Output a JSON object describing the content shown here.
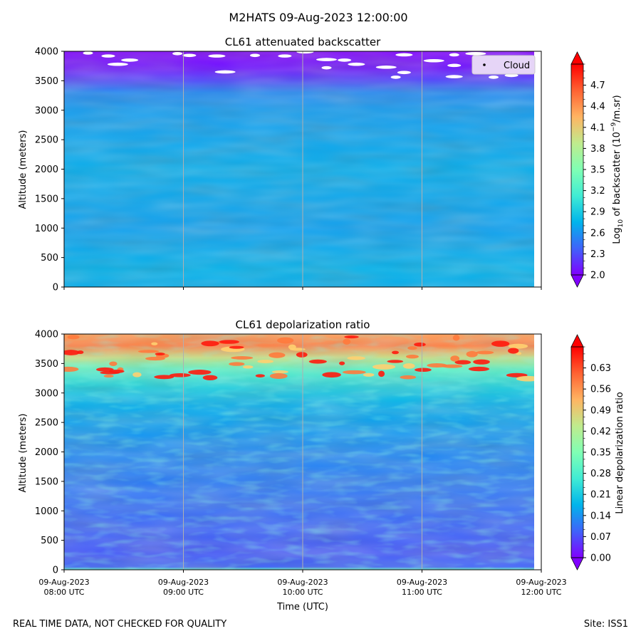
{
  "page": {
    "suptitle": "M2HATS 09-Aug-2023 12:00:00",
    "footer_left": "REAL TIME DATA, NOT CHECKED FOR QUALITY",
    "footer_right": "Site: ISS1"
  },
  "chart_data": [
    {
      "type": "heatmap",
      "title": "CL61 attenuated backscatter",
      "ylabel": "Altitude (meters)",
      "xlabel": "",
      "ylim": [
        0,
        4000
      ],
      "yticks": [
        0,
        500,
        1000,
        1500,
        2000,
        2500,
        3000,
        3500,
        4000
      ],
      "xlim_hours": [
        8,
        12
      ],
      "xticks": [
        {
          "hour": 8,
          "date": "09-Aug-2023",
          "time": "08:00 UTC"
        },
        {
          "hour": 9,
          "date": "09-Aug-2023",
          "time": "09:00 UTC"
        },
        {
          "hour": 10,
          "date": "09-Aug-2023",
          "time": "10:00 UTC"
        },
        {
          "hour": 11,
          "date": "09-Aug-2023",
          "time": "11:00 UTC"
        },
        {
          "hour": 12,
          "date": "09-Aug-2023",
          "time": "12:00 UTC"
        }
      ],
      "show_xtick_labels": false,
      "colorbar": {
        "label_main": "Log",
        "label_sub": "10",
        "label_rest_a": " of backscatter (10",
        "label_sup": "−9",
        "label_rest_b": "/m.sr)",
        "range": [
          2.0,
          5.0
        ],
        "ticks": [
          "2.0",
          "2.3",
          "2.6",
          "2.9",
          "3.2",
          "3.5",
          "3.8",
          "4.1",
          "4.4",
          "4.7"
        ],
        "extend": "both"
      },
      "legend": {
        "label": "Cloud",
        "position": "upper-right"
      },
      "profile": [
        {
          "alt": 0,
          "value": 2.72
        },
        {
          "alt": 300,
          "value": 2.74
        },
        {
          "alt": 1000,
          "value": 2.66
        },
        {
          "alt": 2000,
          "value": 2.72
        },
        {
          "alt": 3000,
          "value": 2.64
        },
        {
          "alt": 3300,
          "value": 2.55
        },
        {
          "alt": 3500,
          "value": 2.28
        },
        {
          "alt": 3700,
          "value": 2.1
        },
        {
          "alt": 4000,
          "value": 2.0
        }
      ],
      "cloud_points": [
        {
          "hour": 8.2,
          "alt": 3970
        },
        {
          "hour": 8.37,
          "alt": 3920
        },
        {
          "hour": 8.55,
          "alt": 3850
        },
        {
          "hour": 8.45,
          "alt": 3780
        },
        {
          "hour": 8.95,
          "alt": 3960
        },
        {
          "hour": 9.05,
          "alt": 3930
        },
        {
          "hour": 9.28,
          "alt": 3920
        },
        {
          "hour": 9.35,
          "alt": 3650
        },
        {
          "hour": 9.6,
          "alt": 3930
        },
        {
          "hour": 9.85,
          "alt": 3920
        },
        {
          "hour": 10.02,
          "alt": 3990
        },
        {
          "hour": 10.2,
          "alt": 3860
        },
        {
          "hour": 10.2,
          "alt": 3720
        },
        {
          "hour": 10.35,
          "alt": 3850
        },
        {
          "hour": 10.45,
          "alt": 3780
        },
        {
          "hour": 10.7,
          "alt": 3730
        },
        {
          "hour": 10.78,
          "alt": 3560
        },
        {
          "hour": 10.85,
          "alt": 3640
        },
        {
          "hour": 10.85,
          "alt": 3940
        },
        {
          "hour": 11.1,
          "alt": 3840
        },
        {
          "hour": 11.27,
          "alt": 3940
        },
        {
          "hour": 11.27,
          "alt": 3760
        },
        {
          "hour": 11.27,
          "alt": 3570
        },
        {
          "hour": 11.45,
          "alt": 3960
        },
        {
          "hour": 11.6,
          "alt": 3560
        },
        {
          "hour": 11.75,
          "alt": 3590
        }
      ]
    },
    {
      "type": "heatmap",
      "title": "CL61 depolarization ratio",
      "ylabel": "Altitude (meters)",
      "xlabel": "Time (UTC)",
      "ylim": [
        0,
        4000
      ],
      "yticks": [
        0,
        500,
        1000,
        1500,
        2000,
        2500,
        3000,
        3500,
        4000
      ],
      "xlim_hours": [
        8,
        12
      ],
      "xticks": [
        {
          "hour": 8,
          "date": "09-Aug-2023",
          "time": "08:00 UTC"
        },
        {
          "hour": 9,
          "date": "09-Aug-2023",
          "time": "09:00 UTC"
        },
        {
          "hour": 10,
          "date": "09-Aug-2023",
          "time": "10:00 UTC"
        },
        {
          "hour": 11,
          "date": "09-Aug-2023",
          "time": "11:00 UTC"
        },
        {
          "hour": 12,
          "date": "09-Aug-2023",
          "time": "12:00 UTC"
        }
      ],
      "show_xtick_labels": true,
      "colorbar": {
        "label_main": "Linear depolarization ratio",
        "range": [
          0.0,
          0.7
        ],
        "ticks": [
          "0.00",
          "0.07",
          "0.14",
          "0.21",
          "0.28",
          "0.35",
          "0.42",
          "0.49",
          "0.56",
          "0.63"
        ],
        "extend": "both"
      },
      "profile": [
        {
          "alt": 0,
          "value": 0.3
        },
        {
          "alt": 50,
          "value": 0.09
        },
        {
          "alt": 300,
          "value": 0.08
        },
        {
          "alt": 1000,
          "value": 0.1
        },
        {
          "alt": 2000,
          "value": 0.13
        },
        {
          "alt": 2800,
          "value": 0.17
        },
        {
          "alt": 3100,
          "value": 0.22
        },
        {
          "alt": 3400,
          "value": 0.3
        },
        {
          "alt": 3600,
          "value": 0.45
        },
        {
          "alt": 3800,
          "value": 0.58
        },
        {
          "alt": 4000,
          "value": 0.55
        }
      ]
    }
  ]
}
